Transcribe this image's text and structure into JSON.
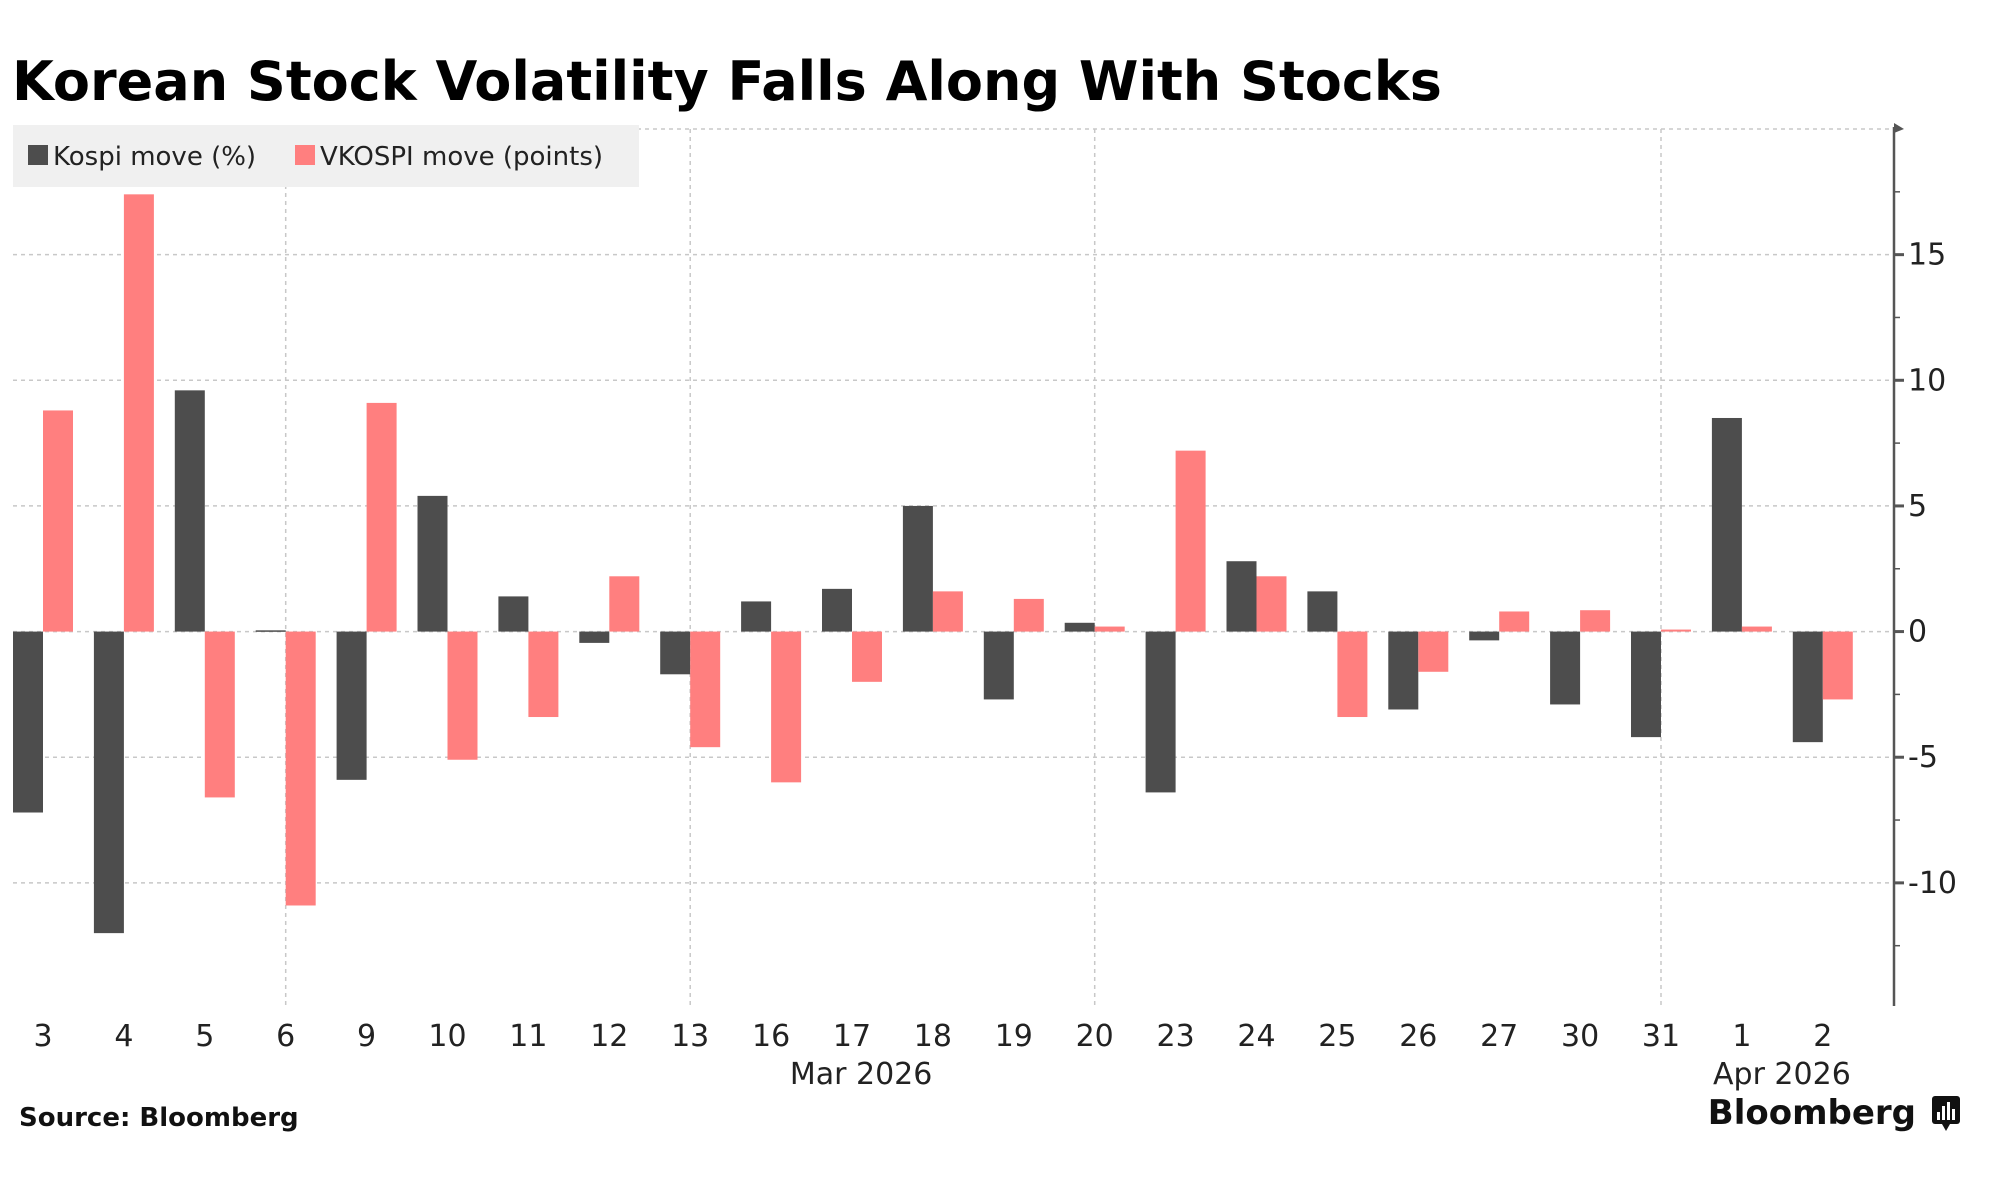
{
  "chart_data": {
    "type": "bar",
    "title": "Korean Stock Volatility Falls Along With Stocks",
    "xlabel": "",
    "ylabel": "",
    "categories": [
      "3",
      "4",
      "5",
      "6",
      "9",
      "10",
      "11",
      "12",
      "13",
      "16",
      "17",
      "18",
      "19",
      "20",
      "23",
      "24",
      "25",
      "26",
      "27",
      "30",
      "31",
      "1",
      "2"
    ],
    "month_labels": [
      {
        "label": "Mar 2026",
        "under_category": "16"
      },
      {
        "label": "Apr 2026",
        "under_category": "1"
      }
    ],
    "series": [
      {
        "name": "Kospi move (%)",
        "color": "#4d4d4d",
        "values": [
          -7.2,
          -12.0,
          9.6,
          0.05,
          -5.9,
          5.4,
          1.4,
          -0.45,
          -1.7,
          1.2,
          1.7,
          5.0,
          -2.7,
          0.35,
          -6.4,
          2.8,
          1.6,
          -3.1,
          -0.35,
          -2.9,
          -4.2,
          8.5,
          -4.4
        ]
      },
      {
        "name": "VKOSPI move (points)",
        "color": "#ff7f7f",
        "values": [
          8.8,
          17.4,
          -6.6,
          -10.9,
          9.1,
          -5.1,
          -3.4,
          2.2,
          -4.6,
          -6.0,
          -2.0,
          1.6,
          1.3,
          0.2,
          7.2,
          2.2,
          -3.4,
          -1.6,
          0.8,
          0.85,
          0.08,
          0.2,
          -2.7
        ]
      }
    ],
    "y_axis": {
      "position": "right",
      "ticks": [
        15,
        10,
        5,
        0,
        -5,
        -10
      ],
      "tick_labels": [
        "15",
        "10",
        "5",
        "0",
        "-5",
        "-10"
      ],
      "ylim": [
        -14.9,
        20
      ]
    },
    "vertical_gridlines_at": [
      "6",
      "13",
      "20",
      "31"
    ],
    "grid": true,
    "legend_position": "top-left"
  },
  "footer": {
    "source": "Source: Bloomberg",
    "brand": "Bloomberg"
  },
  "icons": {
    "brand_logo": "bloomberg-chart-icon"
  }
}
